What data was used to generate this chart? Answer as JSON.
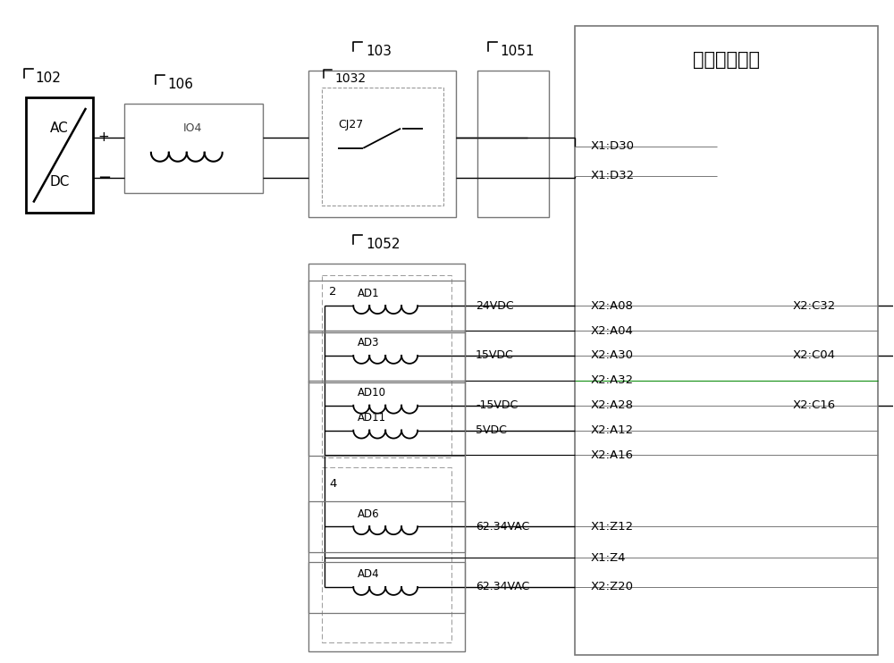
{
  "bg_color": "#ffffff",
  "lc": "#000000",
  "gray": "#777777",
  "dash_color": "#999999",
  "green": "#008800",
  "title_text": "逆变器电源卡",
  "label_102": "102",
  "label_106": "106",
  "label_103": "103",
  "label_1032": "1032",
  "label_1051": "1051",
  "label_1052": "1052",
  "label_IO4": "IO4",
  "label_CJ27": "CJ27",
  "label_2": "2",
  "label_4": "4",
  "label_AD1": "AD1",
  "label_AD3": "AD3",
  "label_AD10": "AD10",
  "label_AD11": "AD11",
  "label_AD6": "AD6",
  "label_AD4": "AD4",
  "label_24VDC": "24VDC",
  "label_15VDC": "15VDC",
  "label_n15VDC": "-15VDC",
  "label_5VDC": "5VDC",
  "label_62VAC1": "62.34VAC",
  "label_62VAC2": "62.34VAC",
  "pin_X1D30": "X1:D30",
  "pin_X1D32": "X1:D32",
  "pin_X2A08": "X2:A08",
  "pin_X2A04": "X2:A04",
  "pin_X2A30": "X2:A30",
  "pin_X2A32": "X2:A32",
  "pin_X2A28": "X2:A28",
  "pin_X2A12": "X2:A12",
  "pin_X2A16": "X2:A16",
  "pin_X1Z12": "X1:Z12",
  "pin_X1Z4": "X1:Z4",
  "pin_X2Z20": "X2:Z20",
  "pin_X2C32": "X2:C32",
  "pin_X2C04": "X2:C04",
  "pin_X2C16": "X2:C16"
}
